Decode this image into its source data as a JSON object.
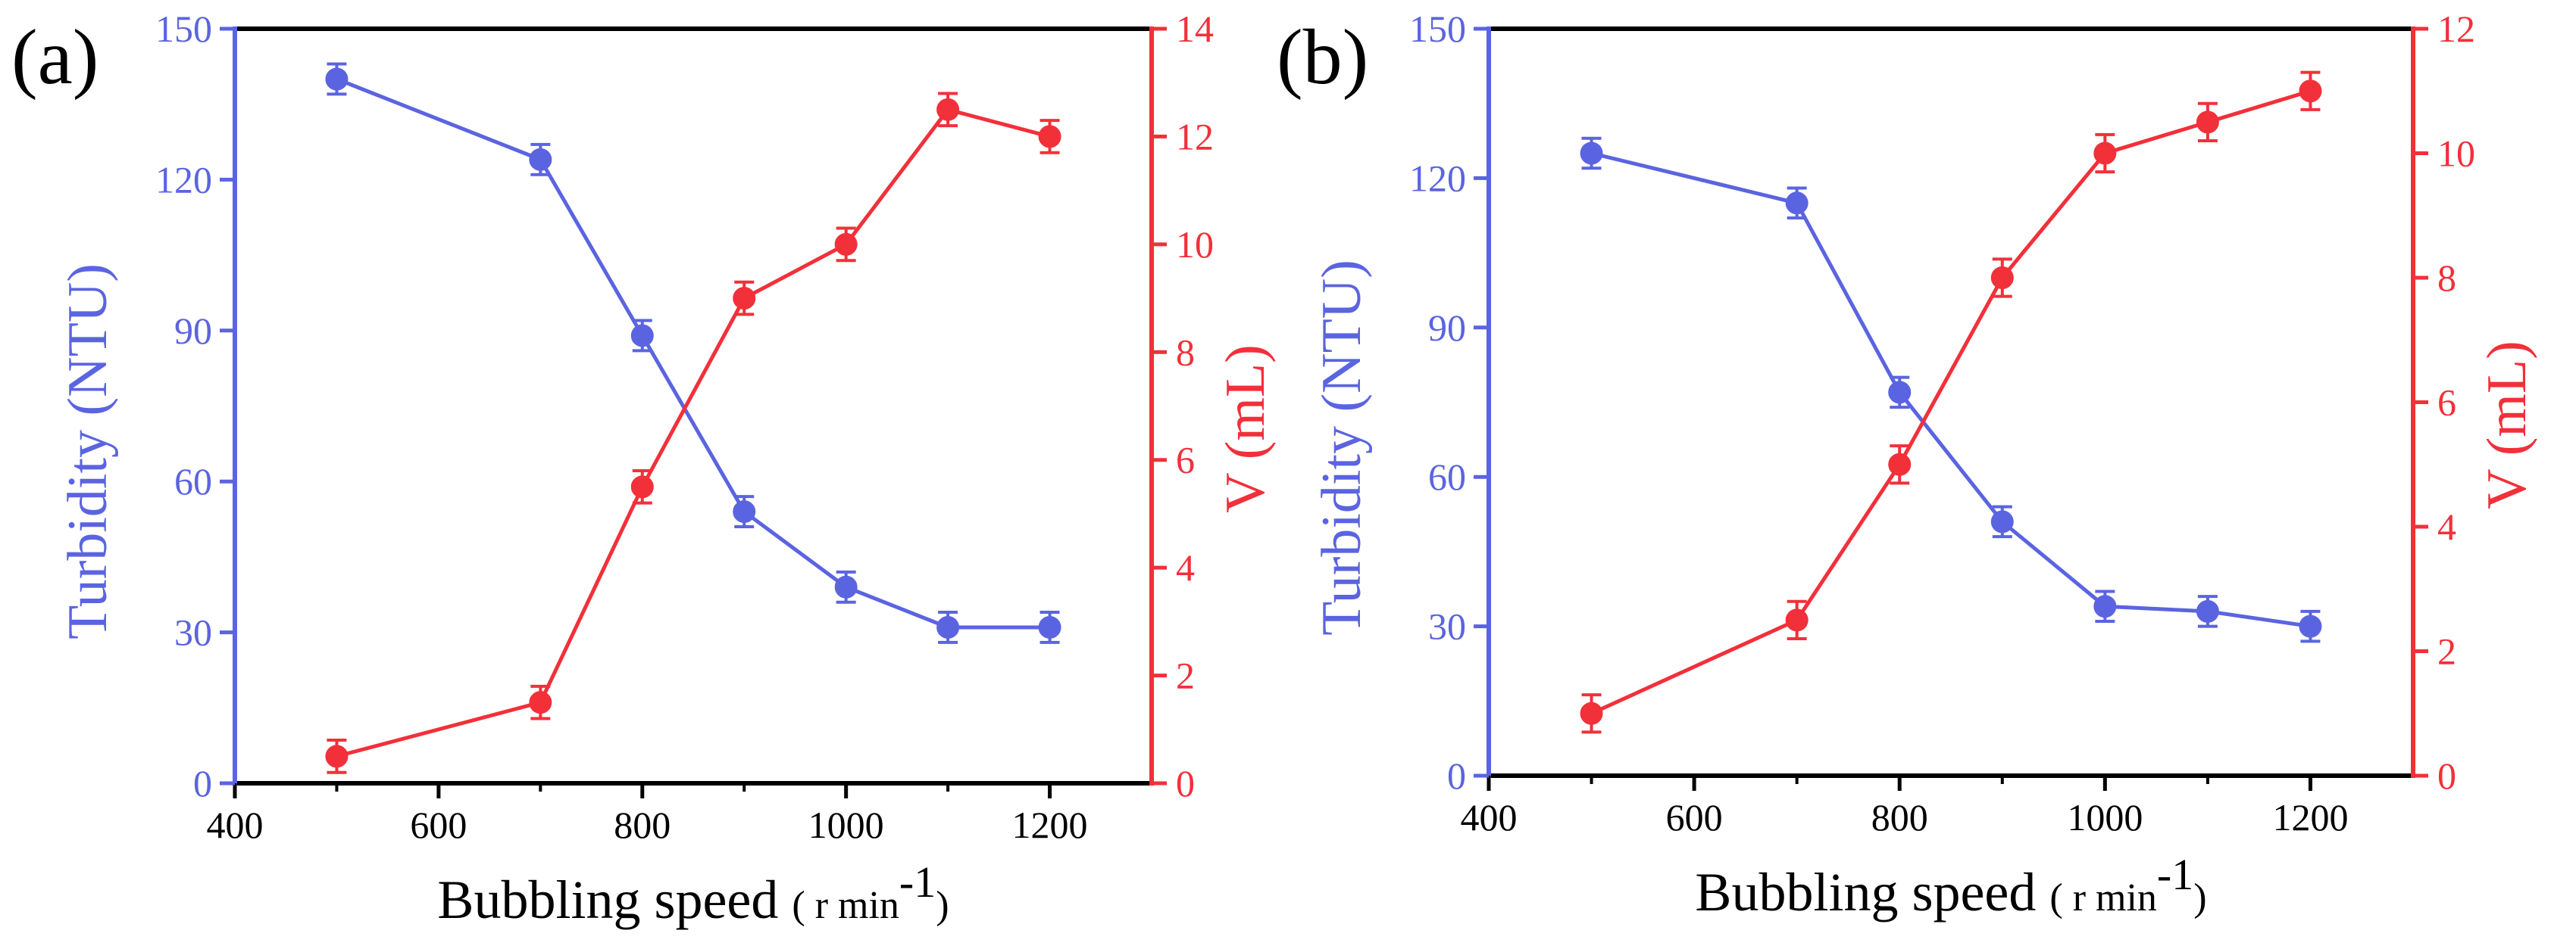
{
  "colors": {
    "left": "#5b64e0",
    "right": "#f2303a",
    "axis": "#000000"
  },
  "chart_data": [
    {
      "type": "line",
      "panel_label": "(a)",
      "xlabel": "Bubbling speed",
      "xlabel_unit_open": "( r min",
      "xlabel_unit_sup": "-1",
      "xlabel_unit_close": ")",
      "xlim": [
        400,
        1300
      ],
      "x_ticks": [
        "400",
        "600",
        "800",
        "1000",
        "1200"
      ],
      "y_left": {
        "label": "Turbidity (NTU)",
        "lim": [
          0,
          150
        ],
        "ticks": [
          "0",
          "30",
          "60",
          "90",
          "120",
          "150"
        ]
      },
      "y_right": {
        "label": "V (mL)",
        "lim": [
          0,
          14
        ],
        "ticks": [
          "0",
          "2",
          "4",
          "6",
          "8",
          "10",
          "12",
          "14"
        ]
      },
      "x": [
        500,
        700,
        800,
        900,
        1000,
        1100,
        1200
      ],
      "series": [
        {
          "name": "Turbidity",
          "axis": "left",
          "values": [
            140,
            124,
            89,
            54,
            39,
            31,
            31
          ],
          "errors": [
            3,
            3,
            3,
            3,
            3,
            3,
            3
          ]
        },
        {
          "name": "V",
          "axis": "right",
          "values": [
            0.5,
            1.5,
            5.5,
            9.0,
            10.0,
            12.5,
            12.0
          ],
          "errors": [
            0.3,
            0.3,
            0.3,
            0.3,
            0.3,
            0.3,
            0.3
          ]
        }
      ]
    },
    {
      "type": "line",
      "panel_label": "(b)",
      "xlabel": "Bubbling speed",
      "xlabel_unit_open": "( r min",
      "xlabel_unit_sup": "-1",
      "xlabel_unit_close": ")",
      "xlim": [
        400,
        1300
      ],
      "x_ticks": [
        "400",
        "600",
        "800",
        "1000",
        "1200"
      ],
      "y_left": {
        "label": "Turbidity (NTU)",
        "lim": [
          0,
          150
        ],
        "ticks": [
          "0",
          "30",
          "60",
          "90",
          "120",
          "150"
        ]
      },
      "y_right": {
        "label": "V (mL)",
        "lim": [
          0,
          12
        ],
        "ticks": [
          "0",
          "2",
          "4",
          "6",
          "8",
          "10",
          "12"
        ]
      },
      "x": [
        500,
        700,
        800,
        900,
        1000,
        1100,
        1200
      ],
      "series": [
        {
          "name": "Turbidity",
          "axis": "left",
          "values": [
            125,
            115,
            77,
            51,
            34,
            33,
            30
          ],
          "errors": [
            3,
            3,
            3,
            3,
            3,
            3,
            3
          ]
        },
        {
          "name": "V",
          "axis": "right",
          "values": [
            1.0,
            2.5,
            5.0,
            8.0,
            10.0,
            10.5,
            11.0
          ],
          "errors": [
            0.3,
            0.3,
            0.3,
            0.3,
            0.3,
            0.3,
            0.3
          ]
        }
      ]
    }
  ]
}
